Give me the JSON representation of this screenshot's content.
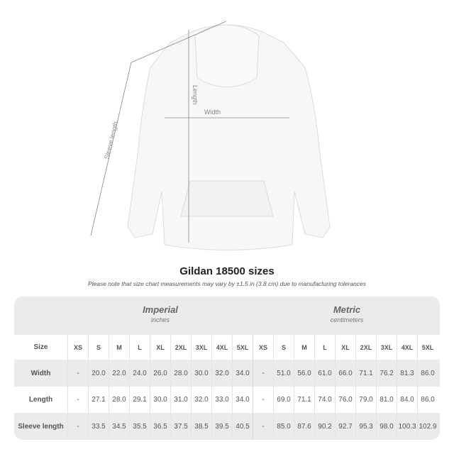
{
  "diagram": {
    "labels": {
      "length": "Length",
      "width": "Width",
      "sleeve": "Sleeve length"
    }
  },
  "title": "Gildan 18500 sizes",
  "note": "Please note that size chart measurements may vary by ±1.5 in (3.8 cm) due to manufacturing tolerances",
  "imperial": {
    "title": "Imperial",
    "unit": "inches"
  },
  "metric": {
    "title": "Metric",
    "unit": "centimeters"
  },
  "size_label": "Size",
  "sizes": [
    "XS",
    "S",
    "M",
    "L",
    "XL",
    "2XL",
    "3XL",
    "4XL",
    "5XL"
  ],
  "rows": [
    {
      "label": "Width",
      "imperial": [
        "-",
        "20.0",
        "22.0",
        "24.0",
        "26.0",
        "28.0",
        "30.0",
        "32.0",
        "34.0"
      ],
      "metric": [
        "-",
        "51.0",
        "56.0",
        "61.0",
        "66.0",
        "71.1",
        "76.2",
        "81.3",
        "86.0"
      ]
    },
    {
      "label": "Length",
      "imperial": [
        "-",
        "27.1",
        "28.0",
        "29.1",
        "30.0",
        "31.0",
        "32.0",
        "33.0",
        "34.0"
      ],
      "metric": [
        "-",
        "69.0",
        "71.1",
        "74.0",
        "76.0",
        "79.0",
        "81.0",
        "84.0",
        "86.0"
      ]
    },
    {
      "label": "Sleeve length",
      "imperial": [
        "-",
        "33.5",
        "34.5",
        "35.5",
        "36.5",
        "37.5",
        "38.5",
        "39.5",
        "40.5"
      ],
      "metric": [
        "-",
        "85.0",
        "87.6",
        "90.2",
        "92.7",
        "95.3",
        "98.0",
        "100.3",
        "102.9"
      ]
    }
  ]
}
